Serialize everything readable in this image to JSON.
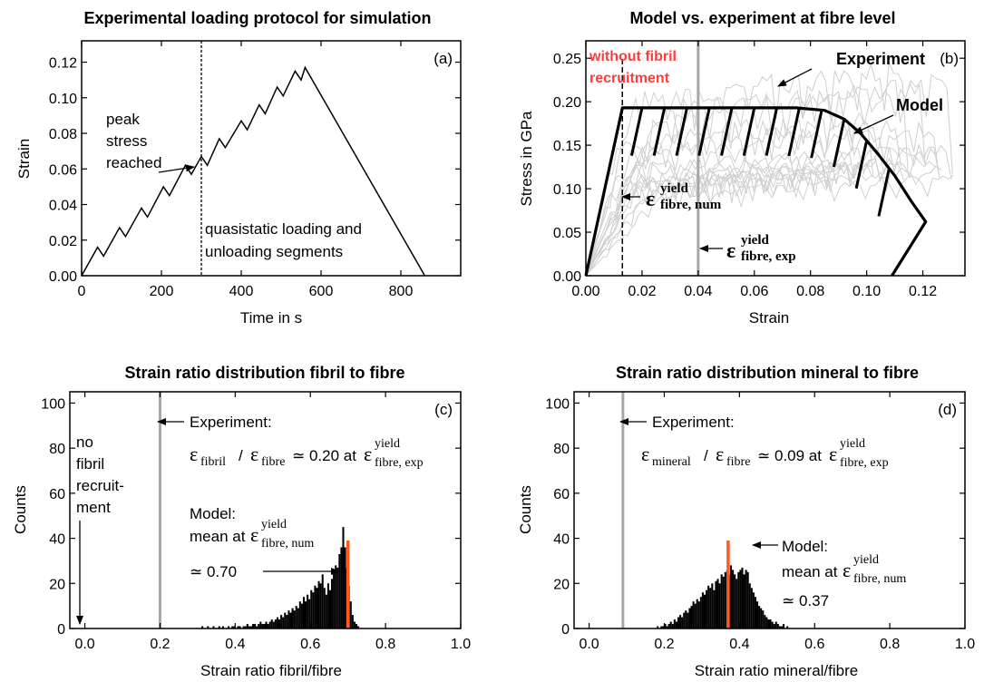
{
  "chart_data": [
    {
      "id": "a",
      "type": "line",
      "title": "Experimental loading protocol for simulation",
      "panel_label": "(a)",
      "xlabel": "Time in s",
      "ylabel": "Strain",
      "xlim": [
        0,
        950
      ],
      "ylim": [
        0,
        0.132
      ],
      "xticks": [
        0,
        200,
        400,
        600,
        800
      ],
      "yticks": [
        0.0,
        0.02,
        0.04,
        0.06,
        0.08,
        0.1,
        0.12
      ],
      "ytick_labels": [
        "0.00",
        "0.02",
        "0.04",
        "0.06",
        "0.08",
        "0.10",
        "0.12"
      ],
      "x": [
        0,
        40,
        55,
        95,
        110,
        150,
        165,
        205,
        220,
        260,
        275,
        300,
        315,
        345,
        360,
        400,
        415,
        445,
        460,
        490,
        505,
        535,
        550,
        560,
        860
      ],
      "y": [
        0,
        0.016,
        0.011,
        0.027,
        0.022,
        0.038,
        0.033,
        0.05,
        0.045,
        0.062,
        0.057,
        0.067,
        0.062,
        0.077,
        0.072,
        0.087,
        0.082,
        0.096,
        0.091,
        0.106,
        0.101,
        0.115,
        0.11,
        0.117,
        0
      ],
      "vline_x": 300,
      "annotations": {
        "peak": [
          "peak",
          "stress",
          "reached"
        ],
        "segments": [
          "quasistatic loading and",
          "unloading segments"
        ]
      }
    },
    {
      "id": "b",
      "type": "line",
      "title": "Model vs. experiment at fibre level",
      "panel_label": "(b)",
      "xlabel": "Strain",
      "ylabel": "Stress in GPa",
      "xlim": [
        0,
        0.135
      ],
      "ylim": [
        0,
        0.27
      ],
      "xticks": [
        0.0,
        0.02,
        0.04,
        0.06,
        0.08,
        0.1,
        0.12
      ],
      "xtick_labels": [
        "0.00",
        "0.02",
        "0.04",
        "0.06",
        "0.08",
        "0.10",
        "0.12"
      ],
      "yticks": [
        0.0,
        0.05,
        0.1,
        0.15,
        0.2,
        0.25
      ],
      "ytick_labels": [
        "0.00",
        "0.05",
        "0.10",
        "0.15",
        "0.20",
        "0.25"
      ],
      "series": [
        {
          "name": "Model",
          "x": [
            0,
            0.013,
            0.075,
            0.085,
            0.092,
            0.098,
            0.104,
            0.11,
            0.116,
            0.121,
            0.109
          ],
          "y": [
            0,
            0.193,
            0.193,
            0.19,
            0.18,
            0.163,
            0.14,
            0.115,
            0.085,
            0.062,
            0
          ]
        }
      ],
      "vlines": [
        {
          "x": 0.013,
          "style": "dashed"
        },
        {
          "x": 0.04,
          "style": "solid-gray"
        }
      ],
      "annotations": {
        "no_recruit": [
          "without fibril",
          "recruitment"
        ],
        "experiment": "Experiment",
        "model": "Model",
        "eps_num_sup": "yield",
        "eps_num_sub": "fibre, num",
        "eps_exp_sup": "yield",
        "eps_exp_sub": "fibre, exp"
      }
    },
    {
      "id": "c",
      "type": "bar",
      "title": "Strain ratio distribution fibril to fibre",
      "panel_label": "(c)",
      "xlabel": "Strain ratio fibril/fibre",
      "ylabel": "Counts",
      "xlim": [
        -0.04,
        1.0
      ],
      "ylim": [
        0,
        105
      ],
      "xticks": [
        0.0,
        0.2,
        0.4,
        0.6,
        0.8,
        1.0
      ],
      "xtick_labels": [
        "0.0",
        "0.2",
        "0.4",
        "0.6",
        "0.8",
        "1.0"
      ],
      "yticks": [
        0,
        20,
        40,
        60,
        80,
        100
      ],
      "bin_start": 0.3,
      "bin_width": 0.005,
      "values": [
        0,
        0,
        1,
        0,
        0,
        1,
        0,
        0,
        1,
        0,
        0,
        1,
        0,
        1,
        0,
        0,
        1,
        0,
        1,
        1,
        0,
        1,
        1,
        0,
        1,
        1,
        2,
        1,
        1,
        2,
        2,
        1,
        2,
        3,
        2,
        2,
        3,
        2,
        3,
        4,
        3,
        4,
        5,
        4,
        6,
        5,
        7,
        6,
        8,
        7,
        9,
        8,
        10,
        9,
        12,
        11,
        14,
        12,
        15,
        13,
        17,
        16,
        19,
        18,
        21,
        20,
        24,
        18,
        15,
        20,
        17,
        22,
        25,
        28,
        27,
        33,
        36,
        45,
        36,
        27,
        19,
        12,
        6,
        3,
        2,
        1
      ],
      "experiment_x": 0.2,
      "model_x": 0.7,
      "model_height": 39,
      "annotations": {
        "no_recruit": [
          "no",
          "fibril",
          "recruit-",
          "ment"
        ],
        "experiment": "Experiment:",
        "ratio_a": "ε",
        "ratio_a_sub": "fibril",
        "ratio_b_sub": "fibre",
        "ratio_value": "≃ 0.20 at",
        "eps_sup": "yield",
        "eps_sub": "fibre, exp",
        "model": [
          "Model:",
          "mean at"
        ],
        "model_eps_sub": "fibre, num",
        "model_value": "≃ 0.70"
      }
    },
    {
      "id": "d",
      "type": "bar",
      "title": "Strain ratio distribution mineral to fibre",
      "panel_label": "(d)",
      "xlabel": "Strain ratio mineral/fibre",
      "ylabel": "Counts",
      "xlim": [
        -0.04,
        1.0
      ],
      "ylim": [
        0,
        105
      ],
      "xticks": [
        0.0,
        0.2,
        0.4,
        0.6,
        0.8,
        1.0
      ],
      "xtick_labels": [
        "0.0",
        "0.2",
        "0.4",
        "0.6",
        "0.8",
        "1.0"
      ],
      "yticks": [
        0,
        20,
        40,
        60,
        80,
        100
      ],
      "bin_start": 0.18,
      "bin_width": 0.005,
      "values": [
        1,
        0,
        1,
        1,
        2,
        1,
        2,
        3,
        2,
        4,
        3,
        5,
        6,
        5,
        7,
        8,
        7,
        9,
        10,
        12,
        11,
        13,
        12,
        14,
        16,
        15,
        17,
        19,
        18,
        20,
        17,
        21,
        22,
        20,
        24,
        23,
        25,
        26,
        24,
        28,
        26,
        24,
        22,
        25,
        26,
        27,
        24,
        26,
        25,
        20,
        18,
        16,
        14,
        12,
        10,
        9,
        8,
        6,
        5,
        4,
        4,
        3,
        2,
        3,
        2,
        1,
        1,
        2,
        0,
        1
      ],
      "experiment_x": 0.09,
      "model_x": 0.37,
      "model_height": 39,
      "annotations": {
        "experiment": "Experiment:",
        "ratio_a": "ε",
        "ratio_a_sub": "mineral",
        "ratio_b_sub": "fibre",
        "ratio_value": "≃ 0.09 at",
        "eps_sup": "yield",
        "eps_sub": "fibre, exp",
        "model": [
          "Model:",
          "mean at"
        ],
        "model_eps_sub": "fibre, num",
        "model_value": "≃ 0.37"
      }
    }
  ],
  "colors": {
    "experiment_gray": "#a6a6a6",
    "experiment_curves": "#cfcfcf",
    "model_orange": "#ff5a1f",
    "red_text": "#ff3b3b",
    "black": "#000000"
  }
}
